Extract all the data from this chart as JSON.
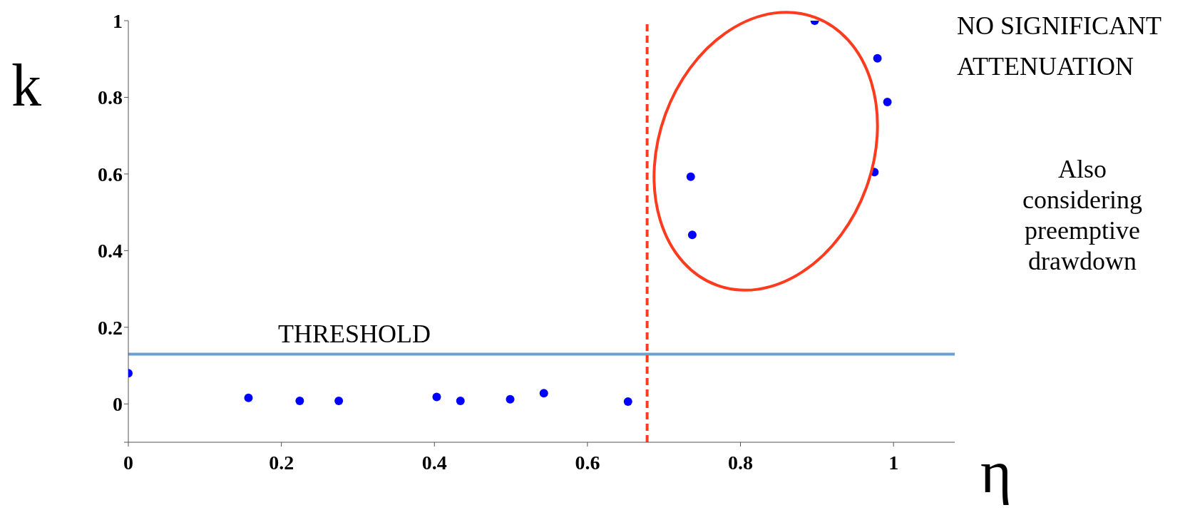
{
  "chart_data": {
    "type": "scatter",
    "xlabel": "η",
    "ylabel": "k",
    "series": [
      {
        "color": "#0000ff",
        "x": [
          0,
          0.157,
          0.224,
          0.275,
          0.403,
          0.434,
          0.499,
          0.543,
          0.653,
          0.735,
          0.737,
          0.897,
          0.979,
          0.992,
          0.975
        ],
        "values": [
          0.08,
          0.016,
          0.008,
          0.008,
          0.018,
          0.008,
          0.012,
          0.028,
          0.006,
          0.593,
          0.441,
          1.0,
          0.902,
          0.788,
          0.605
        ]
      }
    ],
    "xlim": [
      0,
      1.08
    ],
    "ylim": [
      -0.1,
      1
    ],
    "xticks": [
      0,
      0.2,
      0.4,
      0.6,
      0.8,
      1
    ],
    "yticks": [
      {
        "value": -0.1,
        "label": null
      },
      0,
      0.2,
      0.4,
      0.6,
      0.8,
      1
    ],
    "ref_lines": [
      {
        "axis": "y",
        "value": 0.13,
        "label": "THRESHOLD",
        "color": "#6a9fd0",
        "line_style": "solid"
      },
      {
        "axis": "x",
        "value": 0.678,
        "label": null,
        "color": "#ff3b1f",
        "line_style": "dashed"
      }
    ],
    "marker": "circle",
    "grid": false,
    "legend": false,
    "annotations": [
      "NO SIGNIFICANT ATTENUATION",
      "Also considering preemptive drawdown"
    ]
  }
}
